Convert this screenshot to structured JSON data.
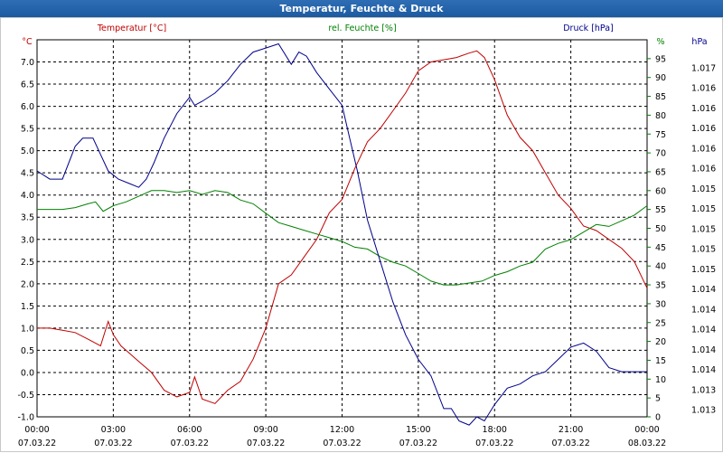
{
  "window": {
    "title": "Temperatur, Feuchte & Druck"
  },
  "chart_data": {
    "type": "line",
    "grid": true,
    "x_ticks": [
      {
        "time": "00:00",
        "date": "07.03.22"
      },
      {
        "time": "03:00",
        "date": "07.03.22"
      },
      {
        "time": "06:00",
        "date": "07.03.22"
      },
      {
        "time": "09:00",
        "date": "07.03.22"
      },
      {
        "time": "12:00",
        "date": "07.03.22"
      },
      {
        "time": "15:00",
        "date": "07.03.22"
      },
      {
        "time": "18:00",
        "date": "07.03.22"
      },
      {
        "time": "21:00",
        "date": "07.03.22"
      },
      {
        "time": "00:00",
        "date": "08.03.22"
      }
    ],
    "xlim": [
      0,
      24
    ],
    "axes": {
      "temperature": {
        "label": "Temperatur [°C]",
        "unit": "°C",
        "color": "#c00000",
        "ylim": [
          -1.0,
          7.5
        ],
        "ticks": [
          "7.0",
          "6.5",
          "6.0",
          "5.5",
          "5.0",
          "4.5",
          "4.0",
          "3.5",
          "3.0",
          "2.5",
          "2.0",
          "1.5",
          "1.0",
          "0.5",
          "0.0",
          "-0.5",
          "-1.0"
        ]
      },
      "humidity": {
        "label": "rel. Feuchte [%]",
        "unit": "%",
        "color": "#008000",
        "ylim": [
          0,
          100
        ],
        "ticks": [
          "95",
          "90",
          "85",
          "80",
          "75",
          "70",
          "65",
          "60",
          "55",
          "50",
          "45",
          "40",
          "35",
          "30",
          "25",
          "20",
          "15",
          "10",
          "5",
          "0"
        ]
      },
      "pressure": {
        "label": "Druck [hPa]",
        "unit": "hPa",
        "color": "#00008b",
        "ylim": [
          1013.0,
          1017.6
        ],
        "ticks": [
          "1.017",
          "1.016",
          "1.016",
          "1.016",
          "1.016",
          "1.016",
          "1.015",
          "1.015",
          "1.015",
          "1.015",
          "1.015",
          "1.014",
          "1.014",
          "1.014",
          "1.014",
          "1.014",
          "1.013",
          "1.013"
        ]
      }
    },
    "series": [
      {
        "name": "Temperatur [°C]",
        "axis": "temperature",
        "color": "#c00000",
        "x": [
          0,
          0.5,
          1,
          1.5,
          2,
          2.5,
          2.8,
          3,
          3.3,
          3.6,
          4,
          4.5,
          5,
          5.5,
          6,
          6.2,
          6.5,
          7,
          7.5,
          8,
          8.5,
          9,
          9.5,
          10,
          10.5,
          11,
          11.5,
          12,
          12.5,
          13,
          13.5,
          14,
          14.5,
          15,
          15.5,
          16,
          16.5,
          17,
          17.3,
          17.6,
          18,
          18.5,
          19,
          19.5,
          20,
          20.5,
          21,
          21.5,
          22,
          22.5,
          23,
          23.5,
          24
        ],
        "values": [
          1.0,
          1.0,
          0.95,
          0.9,
          0.75,
          0.6,
          1.15,
          0.85,
          0.6,
          0.45,
          0.25,
          0.0,
          -0.4,
          -0.55,
          -0.45,
          -0.1,
          -0.6,
          -0.7,
          -0.4,
          -0.2,
          0.3,
          1.0,
          2.0,
          2.2,
          2.6,
          3.0,
          3.6,
          3.9,
          4.6,
          5.2,
          5.5,
          5.9,
          6.3,
          6.8,
          7.0,
          7.05,
          7.1,
          7.2,
          7.25,
          7.1,
          6.6,
          5.8,
          5.3,
          5.0,
          4.5,
          4.0,
          3.7,
          3.3,
          3.2,
          3.0,
          2.8,
          2.5,
          1.9
        ]
      },
      {
        "name": "rel. Feuchte [%]",
        "axis": "humidity",
        "color": "#008000",
        "x": [
          0,
          0.5,
          1,
          1.5,
          2,
          2.3,
          2.6,
          3,
          3.5,
          4,
          4.5,
          5,
          5.5,
          6,
          6.5,
          7,
          7.5,
          8,
          8.5,
          9,
          9.5,
          10,
          10.5,
          11,
          11.5,
          12,
          12.5,
          13,
          13.5,
          14,
          14.5,
          15,
          15.5,
          16,
          16.5,
          17,
          17.5,
          18,
          18.5,
          19,
          19.5,
          20,
          20.5,
          21,
          21.5,
          22,
          22.5,
          23,
          23.5,
          24
        ],
        "values": [
          55,
          55,
          55,
          55.5,
          56.5,
          57,
          54.5,
          56,
          57,
          58.5,
          60,
          60,
          59.5,
          60,
          59,
          60,
          59.5,
          57.5,
          56.5,
          54,
          51.5,
          50.5,
          49.5,
          48.5,
          47.5,
          46.5,
          45,
          44.5,
          42.5,
          41,
          40,
          38,
          36,
          35,
          35,
          35.5,
          36,
          37.5,
          38.5,
          40,
          41,
          44.5,
          46,
          47,
          49,
          51,
          50.5,
          52,
          53.5,
          56
        ]
      },
      {
        "name": "Druck [hPa]",
        "axis": "pressure",
        "color": "#00008b",
        "x": [
          0,
          0.5,
          1,
          1.5,
          1.8,
          2.2,
          2.5,
          2.8,
          3.2,
          3.6,
          4,
          4.3,
          4.6,
          5,
          5.5,
          6,
          6.2,
          6.5,
          7,
          7.5,
          8,
          8.5,
          9,
          9.5,
          10,
          10.3,
          10.6,
          11,
          11.5,
          12,
          12.3,
          12.6,
          13,
          13.5,
          14,
          14.5,
          15,
          15.5,
          16,
          16.3,
          16.6,
          17,
          17.3,
          17.6,
          18,
          18.5,
          19,
          19.5,
          20,
          20.5,
          21,
          21.5,
          22,
          22.5,
          23,
          23.5,
          24
        ],
        "values": [
          1016.0,
          1015.9,
          1015.9,
          1016.3,
          1016.4,
          1016.4,
          1016.2,
          1016.0,
          1015.9,
          1015.85,
          1015.8,
          1015.9,
          1016.1,
          1016.4,
          1016.7,
          1016.9,
          1016.8,
          1016.85,
          1016.95,
          1017.1,
          1017.3,
          1017.45,
          1017.5,
          1017.55,
          1017.3,
          1017.45,
          1017.4,
          1017.2,
          1017.0,
          1016.8,
          1016.4,
          1016.0,
          1015.4,
          1014.9,
          1014.4,
          1014.0,
          1013.7,
          1013.5,
          1013.1,
          1013.1,
          1012.95,
          1012.9,
          1013.0,
          1012.95,
          1013.15,
          1013.35,
          1013.4,
          1013.5,
          1013.55,
          1013.7,
          1013.85,
          1013.9,
          1013.8,
          1013.6,
          1013.55,
          1013.55,
          1013.55
        ]
      }
    ]
  }
}
